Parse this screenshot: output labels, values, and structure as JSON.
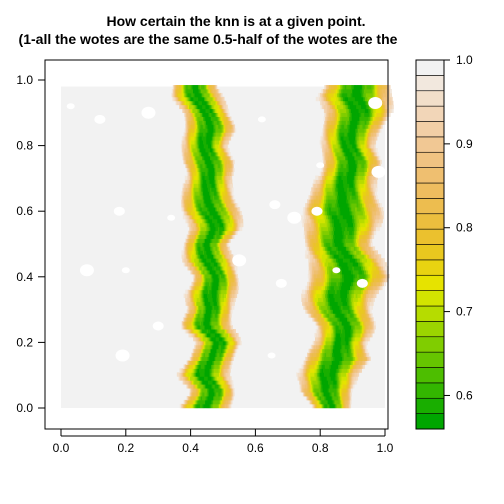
{
  "chart_data": {
    "type": "heatmap",
    "title": "How certain the knn is at a given point.",
    "subtitle": "(1-all the wotes are the same 0.5-half of the wotes are the",
    "xlabel": "",
    "ylabel": "",
    "xlim": [
      0.0,
      1.0
    ],
    "ylim": [
      0.0,
      1.0
    ],
    "x_ticks": [
      "0.0",
      "0.2",
      "0.4",
      "0.6",
      "0.8",
      "1.0"
    ],
    "y_ticks": [
      "0.0",
      "0.2",
      "0.4",
      "0.6",
      "0.8",
      "1.0"
    ],
    "grid": false,
    "legend": {
      "type": "colorbar",
      "placement": "right",
      "range": [
        0.56,
        1.0
      ],
      "ticks": [
        "0.6",
        "0.7",
        "0.8",
        "0.9",
        "1.0"
      ],
      "colors": [
        "#00A600",
        "#19AE00",
        "#33B600",
        "#4DBE00",
        "#66C500",
        "#80CD00",
        "#9BD500",
        "#B6DC00",
        "#D2E400",
        "#E6E300",
        "#E8D311",
        "#E9C81F",
        "#EBC12E",
        "#ECBE3E",
        "#EDBD4F",
        "#EEBD5F",
        "#EFBF70",
        "#F0C382",
        "#F1C894",
        "#F2CFA6",
        "#F2D6B8",
        "#F2DFCA",
        "#F2E8DE",
        "#F2F2F2"
      ]
    },
    "values_description": "certainty in [0.56, 1.0]; ~1.0 everywhere except two vertical decision-boundary bands",
    "bands": [
      {
        "name": "",
        "points": [
          [
            0.0,
            0.44,
            0.07
          ],
          [
            0.05,
            0.46,
            0.06
          ],
          [
            0.1,
            0.44,
            0.07
          ],
          [
            0.15,
            0.47,
            0.06
          ],
          [
            0.2,
            0.48,
            0.06
          ],
          [
            0.25,
            0.44,
            0.07
          ],
          [
            0.3,
            0.47,
            0.06
          ],
          [
            0.35,
            0.46,
            0.07
          ],
          [
            0.4,
            0.47,
            0.06
          ],
          [
            0.45,
            0.46,
            0.07
          ],
          [
            0.5,
            0.45,
            0.06
          ],
          [
            0.55,
            0.47,
            0.07
          ],
          [
            0.6,
            0.46,
            0.08
          ],
          [
            0.65,
            0.46,
            0.07
          ],
          [
            0.7,
            0.45,
            0.06
          ],
          [
            0.75,
            0.45,
            0.07
          ],
          [
            0.8,
            0.45,
            0.06
          ],
          [
            0.85,
            0.46,
            0.07
          ],
          [
            0.9,
            0.44,
            0.06
          ],
          [
            0.95,
            0.42,
            0.07
          ],
          [
            0.98,
            0.42,
            0.06
          ]
        ]
      },
      {
        "name": "",
        "points": [
          [
            0.0,
            0.84,
            0.05
          ],
          [
            0.05,
            0.81,
            0.07
          ],
          [
            0.1,
            0.82,
            0.08
          ],
          [
            0.15,
            0.86,
            0.09
          ],
          [
            0.2,
            0.86,
            0.07
          ],
          [
            0.25,
            0.87,
            0.08
          ],
          [
            0.3,
            0.86,
            0.09
          ],
          [
            0.35,
            0.86,
            0.1
          ],
          [
            0.4,
            0.88,
            0.11
          ],
          [
            0.45,
            0.88,
            0.1
          ],
          [
            0.5,
            0.86,
            0.09
          ],
          [
            0.55,
            0.86,
            0.1
          ],
          [
            0.6,
            0.86,
            0.11
          ],
          [
            0.65,
            0.88,
            0.09
          ],
          [
            0.7,
            0.88,
            0.08
          ],
          [
            0.75,
            0.89,
            0.08
          ],
          [
            0.8,
            0.89,
            0.07
          ],
          [
            0.85,
            0.9,
            0.08
          ],
          [
            0.9,
            0.91,
            0.09
          ],
          [
            0.95,
            0.9,
            0.1
          ],
          [
            0.98,
            0.92,
            0.09
          ]
        ]
      }
    ]
  }
}
